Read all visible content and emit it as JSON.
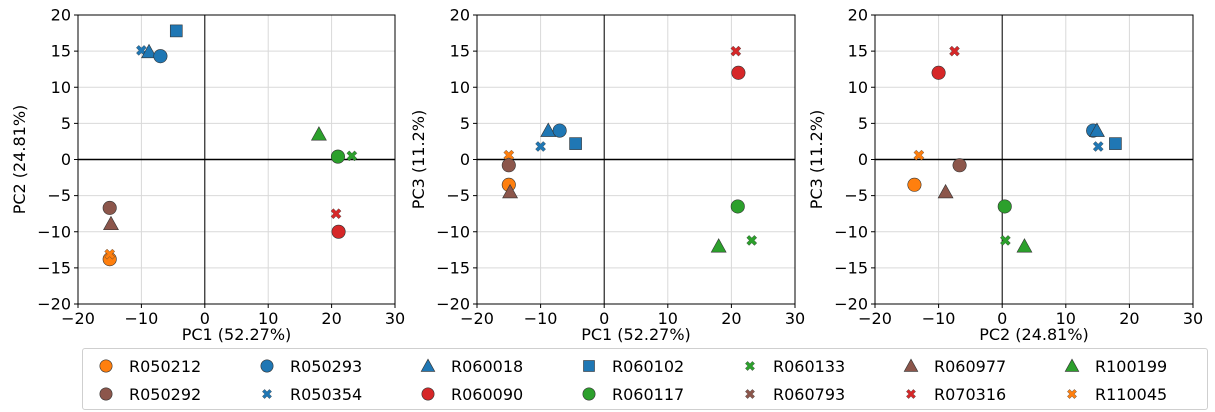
{
  "chart_data": [
    {
      "type": "scatter",
      "xlabel": "PC1 (52.27%)",
      "ylabel": "PC2 (24.81%)",
      "xlim": [
        -20,
        30
      ],
      "ylim": [
        -20,
        20
      ],
      "xticks": [
        -20,
        -10,
        0,
        10,
        20,
        30
      ],
      "yticks": [
        -20,
        -15,
        -10,
        -5,
        0,
        5,
        10,
        15,
        20
      ],
      "grid": true,
      "points": [
        {
          "series": "R050212",
          "x": -15,
          "y": -13.8
        },
        {
          "series": "R110045",
          "x": -15,
          "y": -13.1
        },
        {
          "series": "R060793",
          "x": -15,
          "y": -6.6
        },
        {
          "series": "R050292",
          "x": -15,
          "y": -6.7
        },
        {
          "series": "R060977",
          "x": -14.8,
          "y": -8.9
        },
        {
          "series": "R050354",
          "x": -10,
          "y": 15.1
        },
        {
          "series": "R060018",
          "x": -8.8,
          "y": 14.9
        },
        {
          "series": "R050293",
          "x": -7,
          "y": 14.3
        },
        {
          "series": "R060102",
          "x": -4.5,
          "y": 17.8
        },
        {
          "series": "R100199",
          "x": 18,
          "y": 3.5
        },
        {
          "series": "R060117",
          "x": 21,
          "y": 0.4
        },
        {
          "series": "R060133",
          "x": 23.2,
          "y": 0.5
        },
        {
          "series": "R070316",
          "x": 20.7,
          "y": -7.5
        },
        {
          "series": "R060090",
          "x": 21.1,
          "y": -10
        }
      ]
    },
    {
      "type": "scatter",
      "xlabel": "PC1 (52.27%)",
      "ylabel": "PC3 (11.2%)",
      "xlim": [
        -20,
        30
      ],
      "ylim": [
        -20,
        20
      ],
      "xticks": [
        -20,
        -10,
        0,
        10,
        20,
        30
      ],
      "yticks": [
        -20,
        -15,
        -10,
        -5,
        0,
        5,
        10,
        15,
        20
      ],
      "grid": true,
      "points": [
        {
          "series": "R110045",
          "x": -15,
          "y": 0.6
        },
        {
          "series": "R060793",
          "x": -15,
          "y": -0.9
        },
        {
          "series": "R050292",
          "x": -15,
          "y": -0.8
        },
        {
          "series": "R050212",
          "x": -15,
          "y": -3.5
        },
        {
          "series": "R060977",
          "x": -14.8,
          "y": -4.5
        },
        {
          "series": "R050354",
          "x": -10,
          "y": 1.8
        },
        {
          "series": "R060018",
          "x": -8.8,
          "y": 4
        },
        {
          "series": "R050293",
          "x": -7,
          "y": 4
        },
        {
          "series": "R060102",
          "x": -4.5,
          "y": 2.2
        },
        {
          "series": "R070316",
          "x": 20.7,
          "y": 15
        },
        {
          "series": "R060090",
          "x": 21.1,
          "y": 12
        },
        {
          "series": "R060117",
          "x": 21,
          "y": -6.5
        },
        {
          "series": "R100199",
          "x": 18,
          "y": -12
        },
        {
          "series": "R060133",
          "x": 23.2,
          "y": -11.2
        }
      ]
    },
    {
      "type": "scatter",
      "xlabel": "PC2 (24.81%)",
      "ylabel": "PC3 (11.2%)",
      "xlim": [
        -20,
        30
      ],
      "ylim": [
        -20,
        20
      ],
      "xticks": [
        -20,
        -10,
        0,
        10,
        20,
        30
      ],
      "yticks": [
        -20,
        -15,
        -10,
        -5,
        0,
        5,
        10,
        15,
        20
      ],
      "grid": true,
      "points": [
        {
          "series": "R060090",
          "x": -10,
          "y": 12
        },
        {
          "series": "R070316",
          "x": -7.5,
          "y": 15
        },
        {
          "series": "R050212",
          "x": -13.8,
          "y": -3.5
        },
        {
          "series": "R110045",
          "x": -13.1,
          "y": 0.6
        },
        {
          "series": "R060977",
          "x": -8.9,
          "y": -4.5
        },
        {
          "series": "R060793",
          "x": -6.6,
          "y": -0.9
        },
        {
          "series": "R050292",
          "x": -6.7,
          "y": -0.8
        },
        {
          "series": "R060117",
          "x": 0.4,
          "y": -6.5
        },
        {
          "series": "R060133",
          "x": 0.5,
          "y": -11.2
        },
        {
          "series": "R100199",
          "x": 3.5,
          "y": -12
        },
        {
          "series": "R050293",
          "x": 14.3,
          "y": 4
        },
        {
          "series": "R060018",
          "x": 14.9,
          "y": 4
        },
        {
          "series": "R050354",
          "x": 15.1,
          "y": 1.8
        },
        {
          "series": "R060102",
          "x": 17.8,
          "y": 2.2
        }
      ]
    }
  ],
  "series_styles": {
    "R050212": {
      "color": "#ff7f0e",
      "marker": "circle"
    },
    "R050292": {
      "color": "#8c564b",
      "marker": "circle"
    },
    "R050293": {
      "color": "#1f77b4",
      "marker": "circle"
    },
    "R050354": {
      "color": "#1f77b4",
      "marker": "x"
    },
    "R060018": {
      "color": "#1f77b4",
      "marker": "triangle"
    },
    "R060090": {
      "color": "#d62728",
      "marker": "circle"
    },
    "R060102": {
      "color": "#1f77b4",
      "marker": "square"
    },
    "R060117": {
      "color": "#2ca02c",
      "marker": "circle"
    },
    "R060133": {
      "color": "#2ca02c",
      "marker": "x"
    },
    "R060793": {
      "color": "#8c564b",
      "marker": "x"
    },
    "R060977": {
      "color": "#8c564b",
      "marker": "triangle"
    },
    "R070316": {
      "color": "#d62728",
      "marker": "x"
    },
    "R100199": {
      "color": "#2ca02c",
      "marker": "triangle"
    },
    "R110045": {
      "color": "#ff7f0e",
      "marker": "x"
    }
  },
  "legend": {
    "placement": "bottom",
    "items": [
      {
        "label": "R050212"
      },
      {
        "label": "R050293"
      },
      {
        "label": "R060018"
      },
      {
        "label": "R060102"
      },
      {
        "label": "R060133"
      },
      {
        "label": "R060977"
      },
      {
        "label": "R100199"
      },
      {
        "label": "R050292"
      },
      {
        "label": "R050354"
      },
      {
        "label": "R060090"
      },
      {
        "label": "R060117"
      },
      {
        "label": "R060793"
      },
      {
        "label": "R070316"
      },
      {
        "label": "R110045"
      }
    ]
  }
}
